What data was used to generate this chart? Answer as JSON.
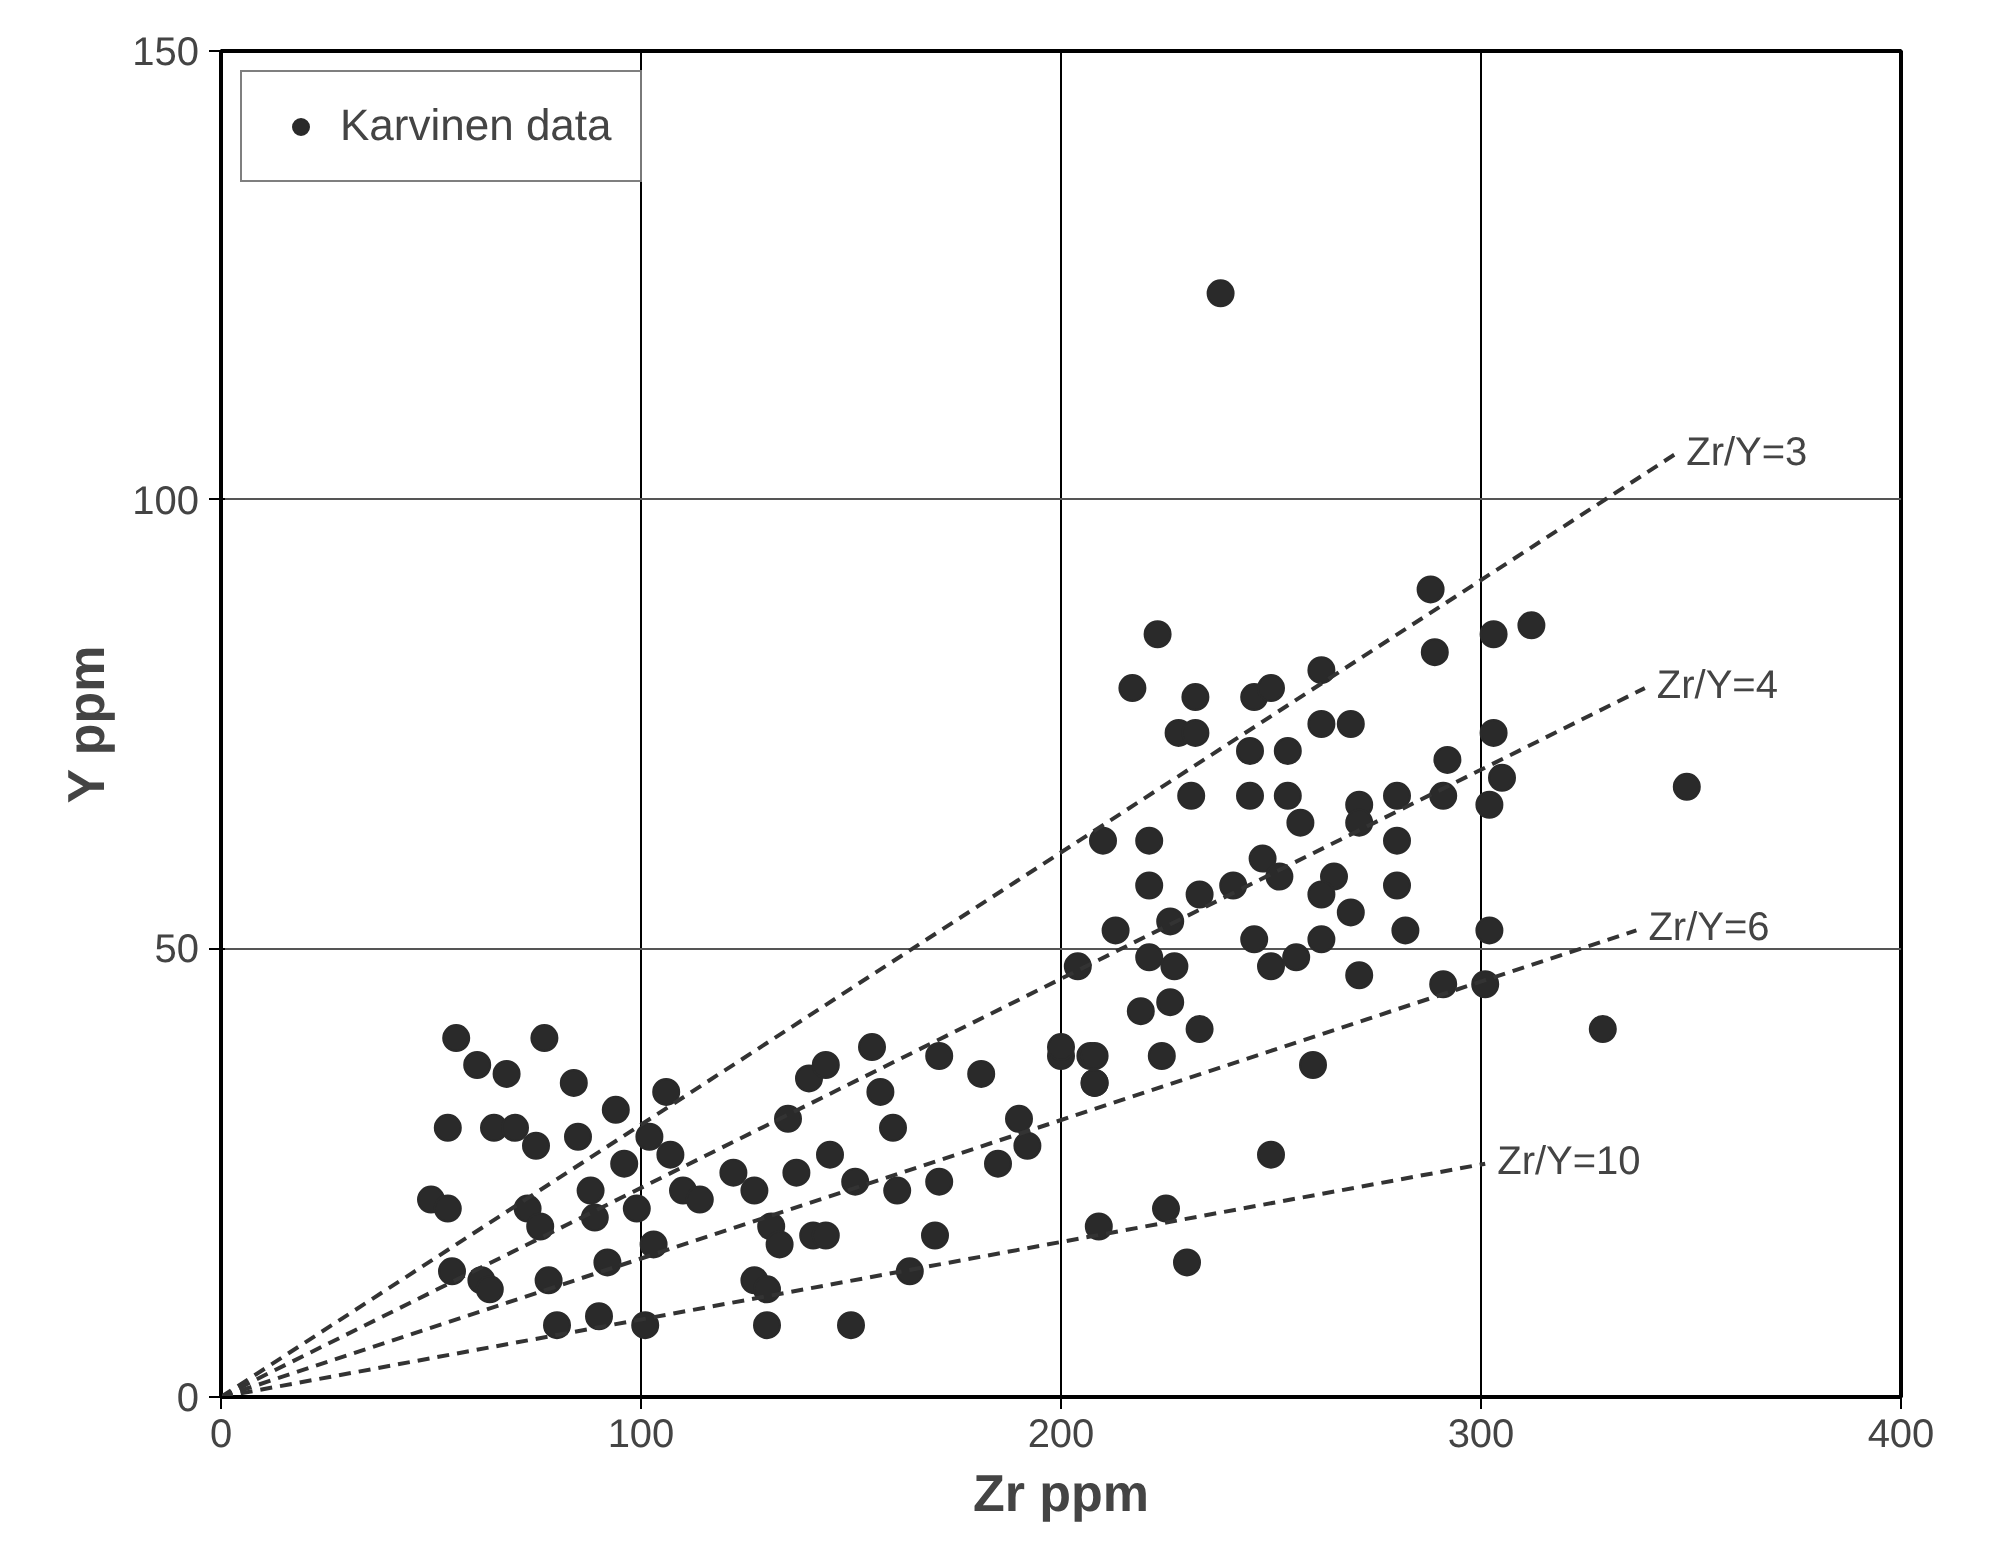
{
  "chart_data": {
    "type": "scatter",
    "xlabel": "Zr ppm",
    "ylabel": "Y ppm",
    "xlim": [
      0,
      400
    ],
    "ylim": [
      0,
      150
    ],
    "xticks": [
      0,
      100,
      200,
      300,
      400
    ],
    "yticks": [
      0,
      50,
      100,
      150
    ],
    "grid": true,
    "legend": "top left",
    "series": [
      {
        "name": "Karvinen data",
        "marker": "circle",
        "color": "#2a2a2a",
        "x": [
          50,
          56,
          54,
          54,
          55,
          61,
          68,
          65,
          70,
          62,
          64,
          77,
          75,
          73,
          76,
          78,
          80,
          84,
          85,
          88,
          89,
          92,
          90,
          94,
          96,
          99,
          101,
          102,
          103,
          106,
          107,
          110,
          114,
          140,
          144,
          155,
          157,
          171,
          181,
          200,
          207,
          208,
          135,
          145,
          160,
          122,
          127,
          137,
          151,
          161,
          171,
          190,
          192,
          185,
          131,
          133,
          141,
          144,
          170,
          127,
          130,
          130,
          150,
          164,
          209,
          225,
          230,
          238,
          288,
          289,
          303,
          312,
          223,
          217,
          232,
          228,
          232,
          246,
          250,
          262,
          262,
          269,
          245,
          245,
          254,
          254,
          257,
          231,
          210,
          221,
          271,
          280,
          292,
          291,
          303,
          302,
          280,
          248,
          252,
          271,
          265,
          262,
          269,
          280,
          282,
          302,
          221,
          233,
          241,
          226,
          213,
          246,
          262,
          250,
          256,
          221,
          204,
          227,
          271,
          291,
          301,
          219,
          226,
          233,
          200,
          208,
          224,
          260,
          208,
          250,
          329,
          349,
          305
        ],
        "values": [
          22,
          40,
          30,
          21,
          14,
          37,
          36,
          30,
          30,
          13,
          12,
          40,
          28,
          21,
          19,
          13,
          8,
          35,
          29,
          23,
          20,
          15,
          9,
          32,
          26,
          21,
          8,
          29,
          17,
          34,
          27,
          23,
          22,
          35.5,
          37,
          39,
          34,
          38,
          36,
          38,
          38,
          35,
          31,
          27,
          30,
          25,
          23,
          25,
          24,
          23,
          24,
          31,
          28,
          26,
          19,
          17,
          18,
          18,
          18,
          13,
          12,
          8,
          8,
          14,
          19,
          21,
          15,
          123,
          90,
          83,
          85,
          86,
          85,
          79,
          78,
          74,
          74,
          78,
          79,
          81,
          75,
          75,
          72,
          67,
          72,
          67,
          64,
          67,
          62,
          62,
          66,
          67,
          71,
          67,
          74,
          66,
          62,
          60,
          58,
          64,
          58,
          56,
          54,
          57,
          52,
          52,
          57,
          56,
          57,
          53,
          52,
          51,
          51,
          48,
          49,
          49,
          48,
          48,
          47,
          46,
          46,
          43,
          44,
          41,
          39,
          38,
          38,
          37,
          35,
          27,
          41,
          68,
          69
        ]
      },
      {
        "name": "Zr/Y=3",
        "type": "line",
        "color": "#333333",
        "line_style": "dashed",
        "x": [
          0,
          346
        ],
        "values": [
          0,
          105
        ]
      },
      {
        "name": "Zr/Y=4",
        "type": "line",
        "color": "#333333",
        "line_style": "dashed",
        "x": [
          0,
          339
        ],
        "values": [
          0,
          79
        ]
      },
      {
        "name": "Zr/Y=6",
        "type": "line",
        "color": "#333333",
        "line_style": "dashed",
        "x": [
          0,
          337
        ],
        "values": [
          0,
          52
        ]
      },
      {
        "name": "Zr/Y=10",
        "type": "line",
        "color": "#333333",
        "line_style": "dashed",
        "x": [
          0,
          301
        ],
        "values": [
          0,
          26
        ]
      }
    ]
  }
}
